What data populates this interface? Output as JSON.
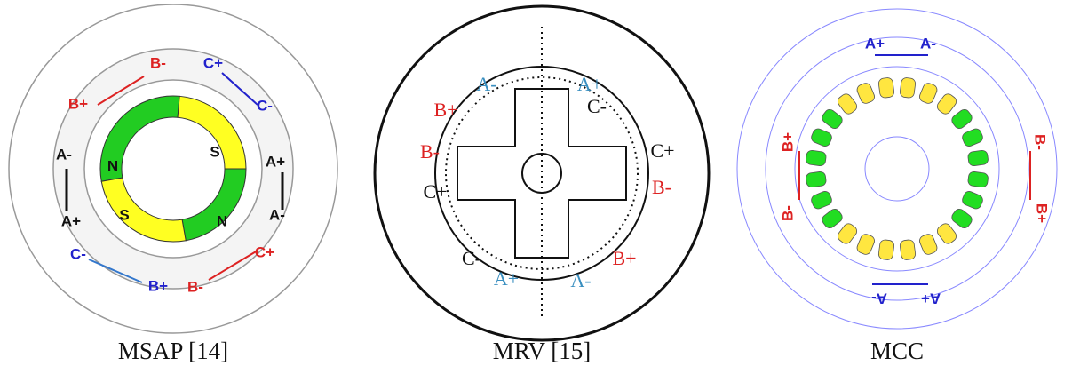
{
  "panels": [
    {
      "caption": "MSAP [14]",
      "labels": [
        "B-",
        "C+",
        "B+",
        "C-",
        "A-",
        "A+",
        "A+",
        "A-",
        "C-",
        "C+",
        "B+",
        "B-"
      ],
      "poles": [
        "N",
        "S",
        "S",
        "N"
      ]
    },
    {
      "caption": "MRV [15]",
      "labels": [
        "A-",
        "A+",
        "B+",
        "C-",
        "B-",
        "C+",
        "C+",
        "B-",
        "C-",
        "A+",
        "A-",
        "B+"
      ]
    },
    {
      "caption": "MCC",
      "labels": [
        "A+",
        "A-",
        "B+",
        "B-",
        "B-",
        "B+",
        "A-",
        "A+"
      ]
    }
  ]
}
